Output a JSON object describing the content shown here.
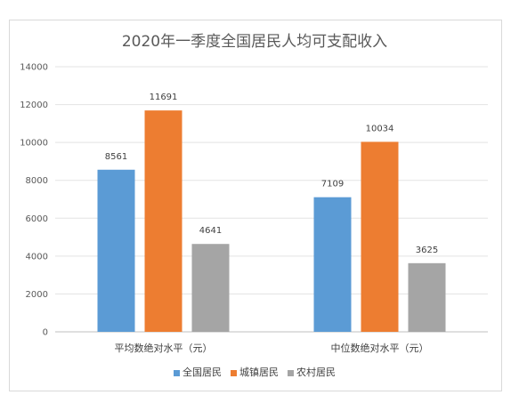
{
  "chart_data": {
    "type": "bar",
    "title": "2020年一季度全国居民人均可支配收入",
    "categories": [
      "平均数绝对水平（元）",
      "中位数绝对水平（元）"
    ],
    "series": [
      {
        "name": "全国居民",
        "color": "#5b9bd5",
        "values": [
          8561,
          7109
        ]
      },
      {
        "name": "城镇居民",
        "color": "#ed7d31",
        "values": [
          11691,
          10034
        ]
      },
      {
        "name": "农村居民",
        "color": "#a5a5a5",
        "values": [
          4641,
          3625
        ]
      }
    ],
    "ylim": [
      0,
      14000
    ],
    "yticks": [
      0,
      2000,
      4000,
      6000,
      8000,
      10000,
      12000,
      14000
    ],
    "grid": true,
    "legend_position": "bottom"
  }
}
